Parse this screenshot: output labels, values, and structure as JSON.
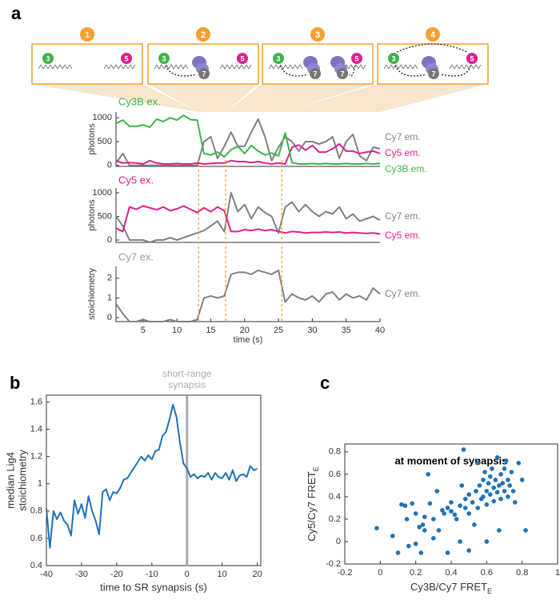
{
  "panel_labels": [
    "a",
    "b",
    "c"
  ],
  "schematic": {
    "steps": [
      {
        "label": "1",
        "dyes": [
          "3",
          "5"
        ]
      },
      {
        "label": "2",
        "dyes": [
          "3",
          "7",
          "5"
        ]
      },
      {
        "label": "3",
        "dyes": [
          "3",
          "7",
          "7",
          "5"
        ]
      },
      {
        "label": "4",
        "dyes": [
          "3",
          "7",
          "5"
        ]
      }
    ]
  },
  "chart_data": [
    {
      "type": "line",
      "title": "Cy3B ex.",
      "title_color": "#3cb44b",
      "ylabel": "photons",
      "x": [
        1,
        2,
        3,
        4,
        5,
        6,
        7,
        8,
        9,
        10,
        11,
        12,
        13,
        14,
        15,
        16,
        17,
        18,
        19,
        20,
        21,
        22,
        23,
        24,
        25,
        26,
        27,
        28,
        29,
        30,
        31,
        32,
        33,
        34,
        35,
        36,
        37,
        38,
        39,
        40
      ],
      "xlim": [
        1,
        40
      ],
      "ylim": [
        -20,
        1120
      ],
      "yticks": [
        0,
        500,
        1000
      ],
      "events": [
        13.2,
        17.2,
        25.5
      ],
      "event_color": "#f5a030",
      "series": [
        {
          "name": "Cy7 em.",
          "color": "#808080",
          "values": [
            50,
            250,
            0,
            0,
            0,
            0,
            0,
            0,
            0,
            0,
            0,
            0,
            0,
            500,
            600,
            150,
            400,
            700,
            400,
            400,
            700,
            970,
            600,
            100,
            380,
            600,
            500,
            300,
            500,
            500,
            450,
            500,
            600,
            150,
            500,
            650,
            200,
            100,
            380,
            350
          ]
        },
        {
          "name": "Cy5 em.",
          "color": "#e0208c",
          "values": [
            100,
            50,
            60,
            50,
            30,
            100,
            50,
            30,
            30,
            40,
            30,
            30,
            50,
            30,
            40,
            50,
            50,
            100,
            80,
            80,
            60,
            80,
            50,
            30,
            50,
            30,
            380,
            430,
            320,
            420,
            280,
            280,
            350,
            450,
            300,
            300,
            250,
            280,
            300,
            250
          ]
        },
        {
          "name": "Cy3B em.",
          "color": "#3cb44b",
          "values": [
            880,
            950,
            820,
            820,
            850,
            800,
            970,
            920,
            1000,
            950,
            1050,
            960,
            950,
            250,
            220,
            280,
            180,
            330,
            400,
            250,
            420,
            300,
            220,
            260,
            200,
            680,
            60,
            30,
            30,
            40,
            30,
            40,
            30,
            30,
            40,
            30,
            30,
            40,
            30,
            40
          ]
        }
      ]
    },
    {
      "type": "line",
      "title": "Cy5 ex.",
      "title_color": "#e0208c",
      "ylabel": "photons",
      "x": [
        1,
        2,
        3,
        4,
        5,
        6,
        7,
        8,
        9,
        10,
        11,
        12,
        13,
        14,
        15,
        16,
        17,
        18,
        19,
        20,
        21,
        22,
        23,
        24,
        25,
        26,
        27,
        28,
        29,
        30,
        31,
        32,
        33,
        34,
        35,
        36,
        37,
        38,
        39,
        40
      ],
      "xlim": [
        1,
        40
      ],
      "ylim": [
        -50,
        1100
      ],
      "yticks": [
        0,
        500,
        1000
      ],
      "series": [
        {
          "name": "Cy7 em.",
          "color": "#808080",
          "values": [
            500,
            300,
            0,
            0,
            0,
            -50,
            0,
            0,
            50,
            0,
            50,
            100,
            150,
            200,
            300,
            400,
            180,
            1000,
            600,
            750,
            450,
            700,
            580,
            500,
            150,
            700,
            800,
            600,
            750,
            600,
            500,
            600,
            550,
            700,
            450,
            550,
            400,
            450,
            500,
            420
          ]
        },
        {
          "name": "Cy5 em.",
          "color": "#e0208c",
          "values": [
            250,
            180,
            700,
            650,
            720,
            680,
            640,
            700,
            620,
            660,
            720,
            650,
            580,
            680,
            600,
            700,
            620,
            180,
            180,
            220,
            200,
            230,
            200,
            220,
            180,
            150,
            180,
            170,
            150,
            160,
            160,
            170,
            160,
            170,
            150,
            160,
            150,
            140,
            150,
            130
          ]
        }
      ]
    },
    {
      "type": "line",
      "title": "Cy7 ex.",
      "title_color": "#999999",
      "ylabel": "stoichiometry",
      "xlabel": "time (s)",
      "x": [
        1,
        2,
        3,
        4,
        5,
        6,
        7,
        8,
        9,
        10,
        11,
        12,
        13,
        14,
        15,
        16,
        17,
        18,
        19,
        20,
        21,
        22,
        23,
        24,
        25,
        26,
        27,
        28,
        29,
        30,
        31,
        32,
        33,
        34,
        35,
        36,
        37,
        38,
        39,
        40
      ],
      "xlim": [
        1,
        40
      ],
      "xticks": [
        5,
        10,
        15,
        20,
        25,
        30,
        35,
        40
      ],
      "ylim": [
        -0.2,
        2.6
      ],
      "yticks": [
        0,
        1,
        2
      ],
      "series": [
        {
          "name": "Cy7 em.",
          "color": "#808080",
          "values": [
            0.7,
            0.2,
            -0.2,
            -0.2,
            -0.1,
            -0.2,
            -0.2,
            -0.2,
            -0.1,
            -0.2,
            -0.2,
            -0.2,
            -0.1,
            1.0,
            1.1,
            1.0,
            1.1,
            2.2,
            2.3,
            2.3,
            2.2,
            2.4,
            2.3,
            2.2,
            2.4,
            0.8,
            1.2,
            1.0,
            0.9,
            1.1,
            0.8,
            1.2,
            1.3,
            0.9,
            1.2,
            1.0,
            1.1,
            0.9,
            1.5,
            1.2
          ]
        }
      ]
    },
    {
      "type": "line",
      "ylabel": [
        "median Lig4",
        "stoichiometry"
      ],
      "xlabel": "time to SR synapsis (s)",
      "annotation": [
        "short-range",
        "synapsis"
      ],
      "annotation_x": 0,
      "annotation_color": "#aaaaaa",
      "x": [
        -40,
        -39,
        -38,
        -37,
        -36,
        -35,
        -34,
        -33,
        -32,
        -31,
        -30,
        -29,
        -28,
        -27,
        -26,
        -25,
        -24,
        -23,
        -22,
        -21,
        -20,
        -19,
        -18,
        -17,
        -16,
        -15,
        -14,
        -13,
        -12,
        -11,
        -10,
        -9,
        -8,
        -7,
        -6,
        -5,
        -4,
        -3,
        -2,
        -1,
        0,
        1,
        2,
        3,
        4,
        5,
        6,
        7,
        8,
        9,
        10,
        11,
        12,
        13,
        14,
        15,
        16,
        17,
        18,
        19,
        20
      ],
      "xlim": [
        -40,
        21
      ],
      "xticks": [
        -40,
        -30,
        -20,
        -10,
        0,
        10,
        20
      ],
      "ylim": [
        0.4,
        1.65
      ],
      "yticks": [
        0.4,
        0.6,
        0.8,
        1,
        1.2,
        1.4,
        1.6
      ],
      "series": [
        {
          "color": "#1f72b8",
          "values": [
            0.82,
            0.53,
            0.8,
            0.74,
            0.79,
            0.73,
            0.7,
            0.62,
            0.88,
            0.78,
            0.85,
            0.75,
            0.91,
            0.8,
            0.73,
            0.63,
            0.94,
            0.96,
            0.88,
            0.94,
            0.93,
            0.97,
            1.03,
            1.04,
            1.08,
            1.12,
            1.16,
            1.2,
            1.17,
            1.21,
            1.18,
            1.24,
            1.25,
            1.35,
            1.38,
            1.47,
            1.58,
            1.49,
            1.3,
            1.15,
            1.11,
            1.05,
            1.07,
            1.04,
            1.06,
            1.05,
            1.08,
            1.03,
            1.08,
            1.05,
            1.04,
            1.08,
            1.03,
            1.1,
            1.02,
            1.06,
            1.07,
            1.05,
            1.13,
            1.1,
            1.11
          ]
        }
      ]
    },
    {
      "type": "scatter",
      "title": "at moment of synapsis",
      "xlabel": [
        "Cy3B/Cy7 FRET",
        "E"
      ],
      "ylabel": [
        "Cy5/Cy7 FRET",
        "E"
      ],
      "color": "#1f72b8",
      "xlim": [
        -0.2,
        1
      ],
      "xticks": [
        -0.2,
        0,
        0.2,
        0.4,
        0.6,
        0.8,
        1
      ],
      "ylim": [
        -0.2,
        0.87
      ],
      "yticks": [
        -0.2,
        0,
        0.2,
        0.4,
        0.6,
        0.8
      ],
      "x": [
        -0.02,
        0.07,
        0.1,
        0.12,
        0.14,
        0.15,
        0.16,
        0.18,
        0.2,
        0.2,
        0.22,
        0.23,
        0.24,
        0.25,
        0.25,
        0.27,
        0.28,
        0.3,
        0.3,
        0.32,
        0.33,
        0.35,
        0.36,
        0.38,
        0.38,
        0.4,
        0.4,
        0.42,
        0.43,
        0.45,
        0.46,
        0.47,
        0.48,
        0.48,
        0.5,
        0.5,
        0.52,
        0.53,
        0.54,
        0.55,
        0.55,
        0.56,
        0.57,
        0.58,
        0.58,
        0.59,
        0.6,
        0.6,
        0.61,
        0.62,
        0.62,
        0.63,
        0.64,
        0.64,
        0.65,
        0.66,
        0.66,
        0.67,
        0.68,
        0.68,
        0.69,
        0.7,
        0.7,
        0.71,
        0.72,
        0.72,
        0.73,
        0.74,
        0.75,
        0.76,
        0.78,
        0.8,
        0.82,
        0.67,
        0.6,
        0.45,
        0.5
      ],
      "values": [
        0.12,
        0.05,
        -0.1,
        0.33,
        0.32,
        0.2,
        -0.04,
        0.34,
        0.25,
        -0.02,
        0.13,
        -0.1,
        0.15,
        0.1,
        0.22,
        0.6,
        0.34,
        0.2,
        0.03,
        0.45,
        0.1,
        0.28,
        0.25,
        0.3,
        -0.1,
        0.27,
        0.35,
        0.24,
        0.2,
        0.32,
        0.5,
        0.82,
        0.38,
        0.3,
        0.42,
        0.25,
        0.35,
        0.15,
        0.45,
        0.7,
        0.3,
        0.5,
        0.38,
        0.55,
        0.4,
        0.62,
        0.45,
        0.33,
        0.52,
        0.42,
        0.58,
        0.65,
        0.48,
        0.36,
        0.55,
        0.75,
        0.44,
        0.5,
        0.6,
        0.38,
        0.52,
        0.45,
        0.65,
        0.72,
        0.4,
        0.55,
        0.5,
        0.62,
        0.45,
        0.35,
        0.7,
        0.55,
        0.1,
        0.1,
        0.0,
        0.0,
        -0.08
      ]
    }
  ]
}
